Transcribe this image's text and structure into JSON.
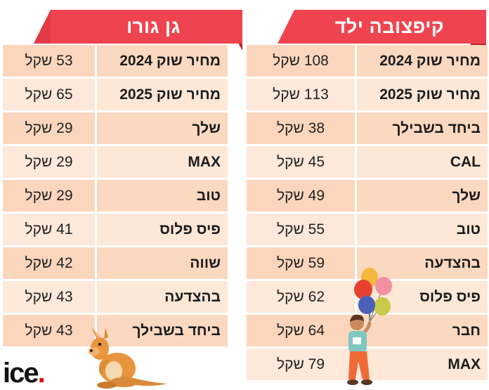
{
  "left_panel": {
    "title": "גן גורו",
    "rows": [
      {
        "label": "מחיר שוק 2024",
        "price": "53 שקל"
      },
      {
        "label": "מחיר שוק 2025",
        "price": "65 שקל"
      },
      {
        "label": "שלך",
        "price": "29 שקל"
      },
      {
        "label": "MAX",
        "price": "29 שקל"
      },
      {
        "label": "טוב",
        "price": "29 שקל"
      },
      {
        "label": "פיס פלוס",
        "price": "41 שקל"
      },
      {
        "label": "שווה",
        "price": "42 שקל"
      },
      {
        "label": "בהצדעה",
        "price": "43 שקל"
      },
      {
        "label": "ביחד בשבילך",
        "price": "43 שקל"
      }
    ]
  },
  "right_panel": {
    "title": "קיפצובה ילד",
    "rows": [
      {
        "label": "מחיר שוק 2024",
        "price": "108 שקל"
      },
      {
        "label": "מחיר שוק 2025",
        "price": "113 שקל"
      },
      {
        "label": "ביחד בשבילך",
        "price": "38 שקל"
      },
      {
        "label": "CAL",
        "price": "45 שקל"
      },
      {
        "label": "שלך",
        "price": "49 שקל"
      },
      {
        "label": "טוב",
        "price": "55 שקל"
      },
      {
        "label": "בהצדעה",
        "price": "59 שקל"
      },
      {
        "label": "פיס פלוס",
        "price": "62 שקל"
      },
      {
        "label": "חבר",
        "price": "64 שקל"
      },
      {
        "label": "MAX",
        "price": "79 שקל"
      }
    ]
  },
  "logo": {
    "text": "ice",
    "dot": "."
  },
  "colors": {
    "banner": "#ef4450",
    "banner_dark": "#c2202e",
    "row_light": "#fde7d6",
    "row_dark": "#fbd8c0",
    "logo_dot": "#e30613"
  },
  "icons": [
    "kangaroo-illustration",
    "boy-with-balloons-illustration"
  ]
}
